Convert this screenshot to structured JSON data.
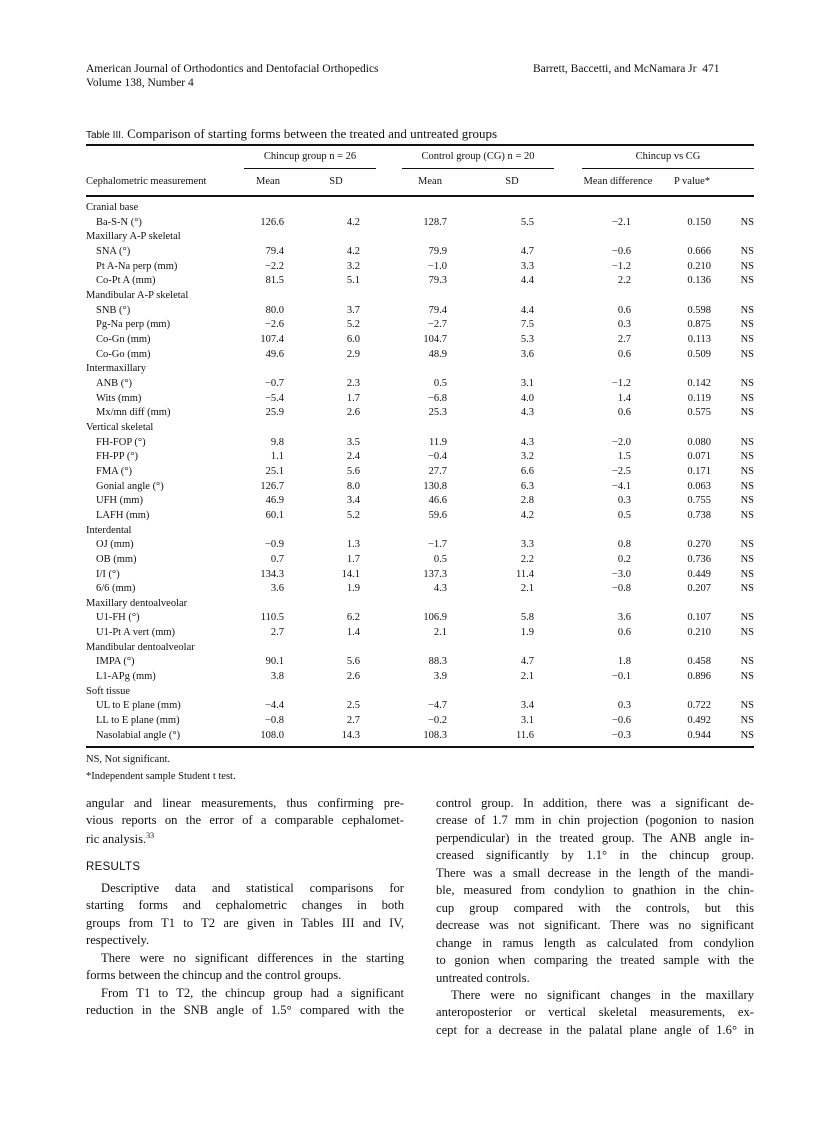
{
  "header": {
    "journal": "American Journal of Orthodontics and Dentofacial Orthopedics",
    "volume": "Volume 138, Number 4",
    "authors": "Barrett, Baccetti, and McNamara Jr",
    "page_number": "471"
  },
  "table": {
    "label": "Table III.",
    "title": "Comparison of starting forms between the treated and untreated groups",
    "group_headers": [
      "Chincup group n = 26",
      "Control group (CG) n = 20",
      "Chincup vs CG"
    ],
    "columns": [
      "Cephalometric measurement",
      "Mean",
      "SD",
      "Mean",
      "SD",
      "Mean difference",
      "P value*"
    ],
    "rows": [
      {
        "section": "Cranial base"
      },
      {
        "label": "Ba-S-N (°)",
        "values": [
          "126.6",
          "4.2",
          "128.7",
          "5.5",
          "−2.1",
          "0.150",
          "NS"
        ]
      },
      {
        "section": "Maxillary A-P skeletal"
      },
      {
        "label": "SNA (°)",
        "values": [
          "79.4",
          "4.2",
          "79.9",
          "4.7",
          "−0.6",
          "0.666",
          "NS"
        ]
      },
      {
        "label": "Pt A-Na perp (mm)",
        "values": [
          "−2.2",
          "3.2",
          "−1.0",
          "3.3",
          "−1.2",
          "0.210",
          "NS"
        ]
      },
      {
        "label": "Co-Pt A (mm)",
        "values": [
          "81.5",
          "5.1",
          "79.3",
          "4.4",
          "2.2",
          "0.136",
          "NS"
        ]
      },
      {
        "section": "Mandibular A-P skeletal"
      },
      {
        "label": "SNB (°)",
        "values": [
          "80.0",
          "3.7",
          "79.4",
          "4.4",
          "0.6",
          "0.598",
          "NS"
        ]
      },
      {
        "label": "Pg-Na perp (mm)",
        "values": [
          "−2.6",
          "5.2",
          "−2.7",
          "7.5",
          "0.3",
          "0.875",
          "NS"
        ]
      },
      {
        "label": "Co-Gn (mm)",
        "values": [
          "107.4",
          "6.0",
          "104.7",
          "5.3",
          "2.7",
          "0.113",
          "NS"
        ]
      },
      {
        "label": "Co-Go (mm)",
        "values": [
          "49.6",
          "2.9",
          "48.9",
          "3.6",
          "0.6",
          "0.509",
          "NS"
        ]
      },
      {
        "section": "Intermaxillary"
      },
      {
        "label": "ANB (°)",
        "values": [
          "−0.7",
          "2.3",
          "0.5",
          "3.1",
          "−1.2",
          "0.142",
          "NS"
        ]
      },
      {
        "label": "Wits (mm)",
        "values": [
          "−5.4",
          "1.7",
          "−6.8",
          "4.0",
          "1.4",
          "0.119",
          "NS"
        ]
      },
      {
        "label": "Mx/mn diff (mm)",
        "values": [
          "25.9",
          "2.6",
          "25.3",
          "4.3",
          "0.6",
          "0.575",
          "NS"
        ]
      },
      {
        "section": "Vertical skeletal"
      },
      {
        "label": "FH-FOP (°)",
        "values": [
          "9.8",
          "3.5",
          "11.9",
          "4.3",
          "−2.0",
          "0.080",
          "NS"
        ]
      },
      {
        "label": "FH-PP (°)",
        "values": [
          "1.1",
          "2.4",
          "−0.4",
          "3.2",
          "1.5",
          "0.071",
          "NS"
        ]
      },
      {
        "label": "FMA (°)",
        "values": [
          "25.1",
          "5.6",
          "27.7",
          "6.6",
          "−2.5",
          "0.171",
          "NS"
        ]
      },
      {
        "label": "Gonial angle (°)",
        "values": [
          "126.7",
          "8.0",
          "130.8",
          "6.3",
          "−4.1",
          "0.063",
          "NS"
        ]
      },
      {
        "label": "UFH (mm)",
        "values": [
          "46.9",
          "3.4",
          "46.6",
          "2.8",
          "0.3",
          "0.755",
          "NS"
        ]
      },
      {
        "label": "LAFH (mm)",
        "values": [
          "60.1",
          "5.2",
          "59.6",
          "4.2",
          "0.5",
          "0.738",
          "NS"
        ]
      },
      {
        "section": "Interdental"
      },
      {
        "label": "OJ (mm)",
        "values": [
          "−0.9",
          "1.3",
          "−1.7",
          "3.3",
          "0.8",
          "0.270",
          "NS"
        ]
      },
      {
        "label": "OB (mm)",
        "values": [
          "0.7",
          "1.7",
          "0.5",
          "2.2",
          "0.2",
          "0.736",
          "NS"
        ]
      },
      {
        "label": "I/I (°)",
        "values": [
          "134.3",
          "14.1",
          "137.3",
          "11.4",
          "−3.0",
          "0.449",
          "NS"
        ]
      },
      {
        "label": "6/6 (mm)",
        "values": [
          "3.6",
          "1.9",
          "4.3",
          "2.1",
          "−0.8",
          "0.207",
          "NS"
        ]
      },
      {
        "section": "Maxillary dentoalveolar"
      },
      {
        "label": "U1-FH (°)",
        "values": [
          "110.5",
          "6.2",
          "106.9",
          "5.8",
          "3.6",
          "0.107",
          "NS"
        ]
      },
      {
        "label": "U1-Pt A vert (mm)",
        "values": [
          "2.7",
          "1.4",
          "2.1",
          "1.9",
          "0.6",
          "0.210",
          "NS"
        ]
      },
      {
        "section": "Mandibular dentoalveolar"
      },
      {
        "label": "IMPA (°)",
        "values": [
          "90.1",
          "5.6",
          "88.3",
          "4.7",
          "1.8",
          "0.458",
          "NS"
        ]
      },
      {
        "label": "L1-APg (mm)",
        "values": [
          "3.8",
          "2.6",
          "3.9",
          "2.1",
          "−0.1",
          "0.896",
          "NS"
        ]
      },
      {
        "section": "Soft tissue"
      },
      {
        "label": "UL to E plane (mm)",
        "values": [
          "−4.4",
          "2.5",
          "−4.7",
          "3.4",
          "0.3",
          "0.722",
          "NS"
        ]
      },
      {
        "label": "LL to E plane (mm)",
        "values": [
          "−0.8",
          "2.7",
          "−0.2",
          "3.1",
          "−0.6",
          "0.492",
          "NS"
        ]
      },
      {
        "label": "Nasolabial angle (°)",
        "values": [
          "108.0",
          "14.3",
          "108.3",
          "11.6",
          "−0.3",
          "0.944",
          "NS"
        ]
      }
    ],
    "footnotes": [
      "NS, Not significant.",
      "*Independent sample Student t test."
    ]
  },
  "body": {
    "left": [
      {
        "text": "angular and linear measurements, thus confirming pre-"
      },
      {
        "text": "vious reports on the error of a comparable cephalomet-"
      },
      {
        "text": "ric analysis.",
        "sup": "33",
        "last": true
      },
      {
        "heading": "RESULTS"
      },
      {
        "text": "Descriptive data and statistical comparisons for",
        "indent": true
      },
      {
        "text": "starting forms and cephalometric changes in both"
      },
      {
        "text": "groups from T1 to T2 are given in Tables III and IV,"
      },
      {
        "text": "respectively.",
        "last": true
      },
      {
        "text": "There were no significant differences in the starting",
        "indent": true
      },
      {
        "text": "forms between the chincup and the control groups.",
        "last": true
      },
      {
        "text": "From T1 to T2, the chincup group had a significant",
        "indent": true
      },
      {
        "text": "reduction in the SNB angle of 1.5° compared with the"
      }
    ],
    "right": [
      {
        "text": "control group. In addition, there was a significant de-"
      },
      {
        "text": "crease of 1.7 mm in chin projection (pogonion to nasion"
      },
      {
        "text": "perpendicular) in the treated group. The ANB angle in-"
      },
      {
        "text": "creased significantly by 1.1° in the chincup group."
      },
      {
        "text": "There was a small decrease in the length of the mandi-"
      },
      {
        "text": "ble, measured from condylion to gnathion in the chin-"
      },
      {
        "text": "cup group compared with the controls, but this"
      },
      {
        "text": "decrease was not significant. There was no significant"
      },
      {
        "text": "change in ramus length as calculated from condylion"
      },
      {
        "text": "to gonion when comparing the treated sample with the"
      },
      {
        "text": "untreated controls.",
        "last": true
      },
      {
        "text": "There were no significant changes in the maxillary",
        "indent": true
      },
      {
        "text": "anteroposterior or vertical skeletal measurements, ex-"
      },
      {
        "text": "cept for a decrease in the palatal plane angle of 1.6° in"
      }
    ]
  }
}
